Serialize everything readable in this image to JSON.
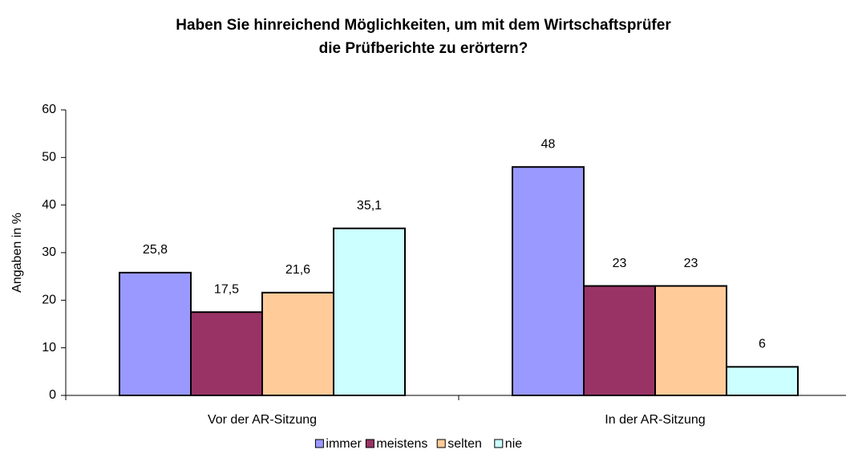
{
  "chart_data": {
    "type": "bar",
    "title": [
      "Haben Sie hinreichend Möglichkeiten, um mit dem Wirtschaftsprüfer",
      "die Prüfberichte zu erörtern?"
    ],
    "y_label": "Angaben in %",
    "categories": [
      "Vor der AR-Sitzung",
      "In der AR-Sitzung"
    ],
    "series": [
      {
        "name": "immer",
        "color": "#9999ff",
        "values": [
          25.8,
          48
        ],
        "value_labels": [
          "25,8",
          "48"
        ]
      },
      {
        "name": "meistens",
        "color": "#993366",
        "values": [
          17.5,
          23
        ],
        "value_labels": [
          "17,5",
          "23"
        ]
      },
      {
        "name": "selten",
        "color": "#ffcc99",
        "values": [
          21.6,
          23
        ],
        "value_labels": [
          "21,6",
          "23"
        ]
      },
      {
        "name": "nie",
        "color": "#ccffff",
        "values": [
          35.1,
          6
        ],
        "value_labels": [
          "35,1",
          "6"
        ]
      }
    ],
    "ylim": [
      0,
      60
    ],
    "yticks": [
      0,
      10,
      20,
      30,
      40,
      50,
      60
    ],
    "grid": false,
    "legend": "bottom"
  }
}
